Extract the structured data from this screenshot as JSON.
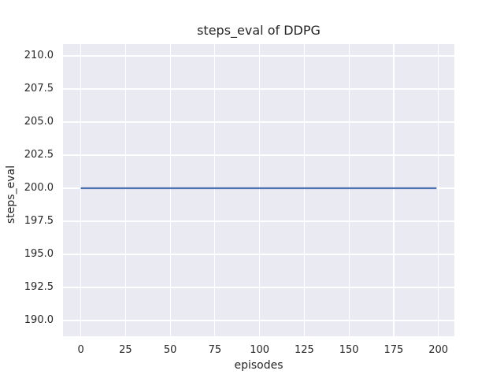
{
  "chart_data": {
    "type": "line",
    "title": "steps_eval of DDPG",
    "xlabel": "episodes",
    "ylabel": "steps_eval",
    "xlim": [
      -9.95,
      208.95
    ],
    "ylim": [
      188.81,
      210.89
    ],
    "x_ticks": [
      0,
      25,
      50,
      75,
      100,
      125,
      150,
      175,
      200
    ],
    "x_tick_labels": [
      "0",
      "25",
      "50",
      "75",
      "100",
      "125",
      "150",
      "175",
      "200"
    ],
    "y_ticks": [
      210.0,
      207.5,
      205.0,
      202.5,
      200.0,
      197.5,
      195.0,
      192.5,
      190.0
    ],
    "y_tick_labels": [
      "210.0",
      "207.5",
      "205.0",
      "202.5",
      "200.0",
      "197.5",
      "195.0",
      "192.5",
      "190.0"
    ],
    "grid": true,
    "legend": null,
    "series": [
      {
        "name": "DDPG",
        "color": "#4C72B0",
        "description": "constant steps_eval value of 200 for every evaluated episode from 0 to 199",
        "x": [
          0,
          199
        ],
        "y": [
          200,
          200
        ]
      }
    ],
    "colors": {
      "figure_background": "#FFFFFF",
      "plot_background": "#EAEAF2",
      "gridline": "#FFFFFF",
      "text": "#262626"
    }
  }
}
